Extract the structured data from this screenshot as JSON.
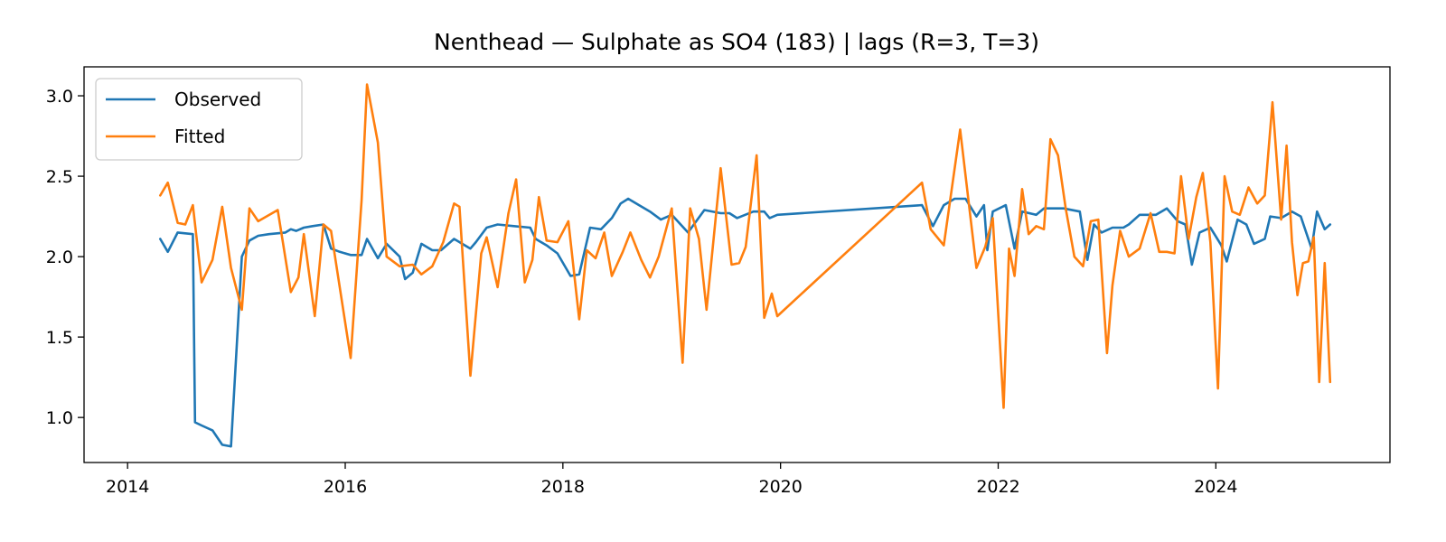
{
  "chart_data": {
    "type": "line",
    "title": "Nenthead — Sulphate as SO4 (183) | lags (R=3, T=3)",
    "xlabel": "",
    "ylabel": "",
    "x_axis_type": "date",
    "xlim": [
      2013.6,
      2025.6
    ],
    "ylim": [
      0.72,
      3.18
    ],
    "x_ticks": [
      2014,
      2016,
      2018,
      2020,
      2022,
      2024
    ],
    "x_tick_labels": [
      "2014",
      "2016",
      "2018",
      "2020",
      "2022",
      "2024"
    ],
    "y_ticks": [
      1.0,
      1.5,
      2.0,
      2.5,
      3.0
    ],
    "y_tick_labels": [
      "1.0",
      "1.5",
      "2.0",
      "2.5",
      "3.0"
    ],
    "grid": false,
    "legend_position": "top-left",
    "series": [
      {
        "name": "Observed",
        "color": "#1f77b4",
        "x": [
          2014.3,
          2014.37,
          2014.46,
          2014.6,
          2014.62,
          2014.68,
          2014.78,
          2014.87,
          2014.95,
          2015.05,
          2015.12,
          2015.2,
          2015.3,
          2015.45,
          2015.5,
          2015.55,
          2015.62,
          2015.7,
          2015.8,
          2015.87,
          2015.95,
          2016.05,
          2016.15,
          2016.2,
          2016.3,
          2016.38,
          2016.5,
          2016.55,
          2016.62,
          2016.7,
          2016.8,
          2016.88,
          2017.0,
          2017.15,
          2017.2,
          2017.3,
          2017.4,
          2017.55,
          2017.7,
          2017.75,
          2017.85,
          2017.95,
          2018.07,
          2018.15,
          2018.25,
          2018.35,
          2018.45,
          2018.53,
          2018.6,
          2018.7,
          2018.8,
          2018.9,
          2019.0,
          2019.15,
          2019.3,
          2019.45,
          2019.53,
          2019.6,
          2019.75,
          2019.85,
          2019.9,
          2019.97,
          2021.3,
          2021.4,
          2021.5,
          2021.6,
          2021.7,
          2021.8,
          2021.87,
          2021.9,
          2021.95,
          2022.07,
          2022.15,
          2022.22,
          2022.35,
          2022.42,
          2022.5,
          2022.6,
          2022.75,
          2022.82,
          2022.88,
          2022.95,
          2023.05,
          2023.15,
          2023.2,
          2023.3,
          2023.45,
          2023.55,
          2023.65,
          2023.72,
          2023.78,
          2023.85,
          2023.95,
          2024.05,
          2024.1,
          2024.2,
          2024.28,
          2024.35,
          2024.45,
          2024.5,
          2024.6,
          2024.7,
          2024.78,
          2024.88,
          2024.93,
          2025.0,
          2025.05
        ],
        "values": [
          2.11,
          2.03,
          2.15,
          2.14,
          0.97,
          0.95,
          0.92,
          0.83,
          0.82,
          2.0,
          2.1,
          2.13,
          2.14,
          2.15,
          2.17,
          2.16,
          2.18,
          2.19,
          2.2,
          2.05,
          2.03,
          2.01,
          2.01,
          2.11,
          1.99,
          2.08,
          2.0,
          1.86,
          1.9,
          2.08,
          2.04,
          2.04,
          2.11,
          2.05,
          2.09,
          2.18,
          2.2,
          2.19,
          2.18,
          2.11,
          2.07,
          2.02,
          1.88,
          1.89,
          2.18,
          2.17,
          2.24,
          2.33,
          2.36,
          2.32,
          2.28,
          2.23,
          2.26,
          2.15,
          2.29,
          2.27,
          2.27,
          2.24,
          2.28,
          2.28,
          2.24,
          2.26,
          2.32,
          2.19,
          2.32,
          2.36,
          2.36,
          2.25,
          2.32,
          2.04,
          2.28,
          2.32,
          2.05,
          2.28,
          2.26,
          2.3,
          2.3,
          2.3,
          2.28,
          1.98,
          2.2,
          2.15,
          2.18,
          2.18,
          2.2,
          2.26,
          2.26,
          2.3,
          2.22,
          2.2,
          1.95,
          2.15,
          2.18,
          2.07,
          1.97,
          2.23,
          2.2,
          2.08,
          2.11,
          2.25,
          2.24,
          2.28,
          2.25,
          2.05,
          2.28,
          2.17,
          2.2
        ]
      },
      {
        "name": "Fitted",
        "color": "#ff7f0e",
        "x": [
          2014.3,
          2014.37,
          2014.46,
          2014.53,
          2014.6,
          2014.68,
          2014.78,
          2014.87,
          2014.95,
          2015.05,
          2015.12,
          2015.2,
          2015.38,
          2015.5,
          2015.57,
          2015.62,
          2015.72,
          2015.8,
          2015.87,
          2016.05,
          2016.15,
          2016.2,
          2016.3,
          2016.38,
          2016.5,
          2016.62,
          2016.7,
          2016.8,
          2016.9,
          2017.0,
          2017.05,
          2017.15,
          2017.25,
          2017.3,
          2017.4,
          2017.5,
          2017.57,
          2017.65,
          2017.72,
          2017.78,
          2017.85,
          2017.95,
          2018.05,
          2018.15,
          2018.22,
          2018.3,
          2018.38,
          2018.45,
          2018.55,
          2018.62,
          2018.72,
          2018.8,
          2018.88,
          2019.0,
          2019.1,
          2019.17,
          2019.25,
          2019.32,
          2019.45,
          2019.55,
          2019.62,
          2019.68,
          2019.78,
          2019.85,
          2019.92,
          2019.97,
          2021.3,
          2021.38,
          2021.5,
          2021.65,
          2021.8,
          2021.88,
          2021.95,
          2022.05,
          2022.1,
          2022.15,
          2022.22,
          2022.28,
          2022.35,
          2022.42,
          2022.48,
          2022.55,
          2022.62,
          2022.7,
          2022.78,
          2022.85,
          2022.92,
          2023.0,
          2023.05,
          2023.12,
          2023.2,
          2023.3,
          2023.4,
          2023.48,
          2023.55,
          2023.62,
          2023.68,
          2023.75,
          2023.82,
          2023.88,
          2023.95,
          2024.02,
          2024.08,
          2024.15,
          2024.22,
          2024.3,
          2024.38,
          2024.45,
          2024.52,
          2024.6,
          2024.65,
          2024.7,
          2024.75,
          2024.8,
          2024.85,
          2024.9,
          2024.95,
          2025.0,
          2025.05
        ],
        "values": [
          2.38,
          2.46,
          2.21,
          2.2,
          2.32,
          1.84,
          1.98,
          2.31,
          1.93,
          1.67,
          2.3,
          2.22,
          2.29,
          1.78,
          1.87,
          2.14,
          1.63,
          2.2,
          2.16,
          1.37,
          2.35,
          3.07,
          2.71,
          2.0,
          1.94,
          1.95,
          1.89,
          1.94,
          2.09,
          2.33,
          2.31,
          1.26,
          2.02,
          2.12,
          1.81,
          2.27,
          2.48,
          1.84,
          1.98,
          2.37,
          2.1,
          2.09,
          2.22,
          1.61,
          2.04,
          1.99,
          2.15,
          1.88,
          2.03,
          2.15,
          1.98,
          1.87,
          2.0,
          2.3,
          1.34,
          2.3,
          2.11,
          1.67,
          2.55,
          1.95,
          1.96,
          2.06,
          2.63,
          1.62,
          1.77,
          1.63,
          2.46,
          2.17,
          2.07,
          2.79,
          1.93,
          2.06,
          2.24,
          1.06,
          2.05,
          1.88,
          2.42,
          2.14,
          2.19,
          2.17,
          2.73,
          2.63,
          2.3,
          2.0,
          1.94,
          2.22,
          2.23,
          1.4,
          1.82,
          2.16,
          2.0,
          2.05,
          2.27,
          2.03,
          2.03,
          2.02,
          2.5,
          2.11,
          2.37,
          2.52,
          2.09,
          1.18,
          2.5,
          2.28,
          2.26,
          2.43,
          2.33,
          2.38,
          2.96,
          2.23,
          2.69,
          2.09,
          1.76,
          1.96,
          1.97,
          2.12,
          1.22,
          1.96,
          1.22
        ]
      }
    ]
  }
}
